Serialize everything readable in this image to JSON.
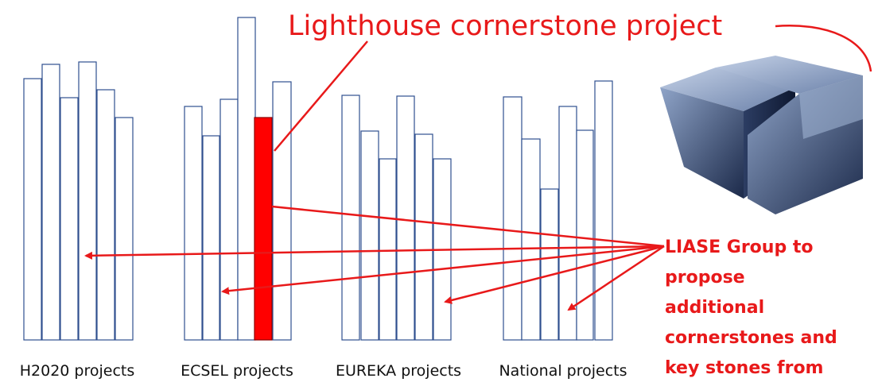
{
  "title": "Lighthouse cornerstone project",
  "groups": [
    "H2020 projects",
    "ECSEL projects",
    "EUREKA projects",
    "National projects"
  ],
  "note": {
    "lines": [
      "LIASE Group to",
      "propose",
      "additional",
      "cornerstones and",
      "key stones from"
    ]
  }
}
